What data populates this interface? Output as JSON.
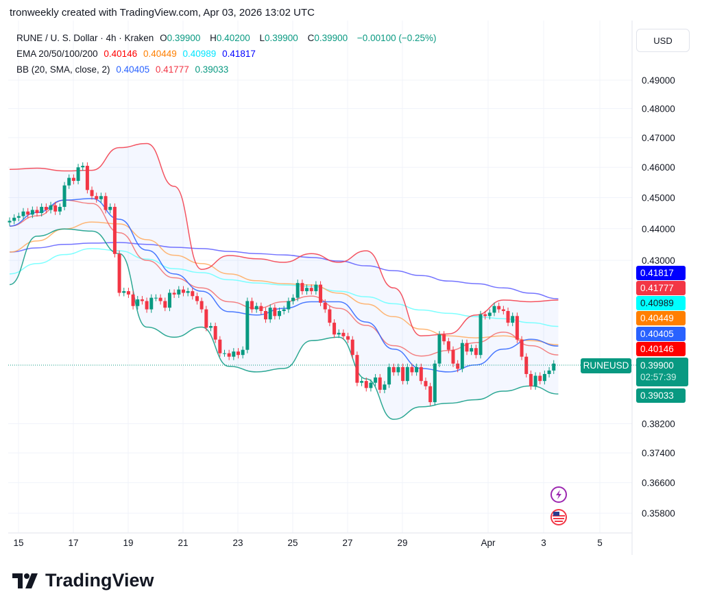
{
  "header": {
    "title": "tronweekly created with TradingView.com, Apr 03, 2026 13:02 UTC"
  },
  "legend": {
    "symbol": "RUNE / U. S. Dollar · 4h · Kraken",
    "o_label": "O",
    "o": "0.39900",
    "h_label": "H",
    "h": "0.40200",
    "l_label": "L",
    "l": "0.39900",
    "c_label": "C",
    "c": "0.39900",
    "change": "−0.00100 (−0.25%)",
    "ema_label": "EMA 20/50/100/200",
    "ema_values": [
      "0.40146",
      "0.40449",
      "0.40989",
      "0.41817"
    ],
    "bb_label": "BB (20, SMA, close, 2)",
    "bb_values": [
      "0.40405",
      "0.41777",
      "0.39033"
    ]
  },
  "currency_button": "USD",
  "badges": {
    "ema200": "0.41817",
    "bb_upper": "0.41777",
    "ema100": "0.40989",
    "ema50": "0.40449",
    "bb_basis": "0.40405",
    "ema20": "0.40146",
    "price": "0.39900",
    "countdown": "02:57:39",
    "bb_lower": "0.39033",
    "symbol": "RUNEUSD"
  },
  "colors": {
    "up": "#089981",
    "down": "#f23645",
    "ema20": "#ff0000",
    "ema50": "#ff7f00",
    "ema100": "#00ffff",
    "ema200": "#0000ff",
    "bb_basis": "#2962ff",
    "bb_upper": "#f23645",
    "bb_lower": "#089981"
  },
  "icons": [
    "lightning-icon",
    "us-flag-icon"
  ],
  "brand": "TradingView",
  "chart_data": {
    "type": "candlestick",
    "scale": "log",
    "grid": true,
    "interval": "4h",
    "first_candle": "Mar 14 16:00",
    "y_ticks": [
      "0.49000",
      "0.48000",
      "0.47000",
      "0.46000",
      "0.45000",
      "0.44000",
      "0.43000",
      "0.38200",
      "0.37400",
      "0.36600",
      "0.35800"
    ],
    "x_ticks": [
      "15",
      "17",
      "19",
      "21",
      "23",
      "25",
      "27",
      "29",
      "Apr",
      "3",
      "5"
    ],
    "close": [
      0.4425,
      0.4435,
      0.444,
      0.4455,
      0.4445,
      0.446,
      0.445,
      0.447,
      0.446,
      0.4475,
      0.4455,
      0.447,
      0.454,
      0.4565,
      0.4555,
      0.46,
      0.4605,
      0.4525,
      0.4505,
      0.4495,
      0.4505,
      0.446,
      0.447,
      0.432,
      0.42,
      0.4205,
      0.4195,
      0.416,
      0.418,
      0.4175,
      0.415,
      0.4185,
      0.4185,
      0.4175,
      0.4155,
      0.42,
      0.4195,
      0.421,
      0.42,
      0.4205,
      0.419,
      0.4175,
      0.415,
      0.4095,
      0.41,
      0.406,
      0.402,
      0.402,
      0.401,
      0.4025,
      0.4015,
      0.403,
      0.4175,
      0.415,
      0.416,
      0.4145,
      0.412,
      0.4155,
      0.413,
      0.4145,
      0.415,
      0.4175,
      0.4185,
      0.423,
      0.4205,
      0.4215,
      0.4205,
      0.4225,
      0.417,
      0.415,
      0.411,
      0.4075,
      0.408,
      0.407,
      0.406,
      0.4015,
      0.3935,
      0.394,
      0.392,
      0.3935,
      0.395,
      0.3915,
      0.393,
      0.398,
      0.3965,
      0.398,
      0.394,
      0.398,
      0.3965,
      0.398,
      0.394,
      0.3925,
      0.388,
      0.399,
      0.4075,
      0.4055,
      0.403,
      0.399,
      0.3975,
      0.405,
      0.4025,
      0.4035,
      0.4015,
      0.4135,
      0.413,
      0.414,
      0.416,
      0.415,
      0.4145,
      0.411,
      0.413,
      0.406,
      0.401,
      0.396,
      0.3925,
      0.3955,
      0.394,
      0.396,
      0.397,
      0.399
    ],
    "indicator_sample_every_candles": 6,
    "series": [
      {
        "name": "EMA 200",
        "key": "ema200",
        "values": [
          0.4326,
          0.4339,
          0.435,
          0.4354,
          0.4356,
          0.435,
          0.4341,
          0.4337,
          0.4328,
          0.4321,
          0.4317,
          0.4309,
          0.4298,
          0.4283,
          0.4268,
          0.4253,
          0.4236,
          0.4228,
          0.4215,
          0.4199,
          0.4182
        ]
      },
      {
        "name": "EMA 100",
        "key": "ema100",
        "values": [
          0.4258,
          0.429,
          0.4318,
          0.4337,
          0.433,
          0.4304,
          0.4274,
          0.4262,
          0.424,
          0.423,
          0.4224,
          0.4219,
          0.4205,
          0.4188,
          0.4167,
          0.4148,
          0.4138,
          0.4128,
          0.4122,
          0.411,
          0.4099
        ]
      },
      {
        "name": "EMA 50",
        "key": "ema50",
        "values": [
          0.4326,
          0.4361,
          0.4399,
          0.4421,
          0.4415,
          0.4365,
          0.4316,
          0.429,
          0.4258,
          0.4237,
          0.4228,
          0.4224,
          0.4199,
          0.4166,
          0.4128,
          0.4091,
          0.4071,
          0.4065,
          0.4071,
          0.4057,
          0.4045
        ]
      },
      {
        "name": "EMA 20",
        "key": "ema20",
        "values": [
          0.4408,
          0.4441,
          0.4492,
          0.4481,
          0.4387,
          0.43,
          0.4246,
          0.4215,
          0.4173,
          0.4153,
          0.4173,
          0.419,
          0.4153,
          0.4102,
          0.4042,
          0.4012,
          0.4028,
          0.4051,
          0.4082,
          0.4042,
          0.4015
        ]
      },
      {
        "name": "BB basis",
        "key": "bb_basis",
        "values": [
          0.4408,
          0.4452,
          0.4492,
          0.4497,
          0.443,
          0.4332,
          0.4258,
          0.4205,
          0.4143,
          0.4133,
          0.4153,
          0.4173,
          0.4173,
          0.4112,
          0.4032,
          0.3976,
          0.3966,
          0.3986,
          0.4032,
          0.4061,
          0.4041
        ]
      },
      {
        "name": "BB upper",
        "key": "bb_upper",
        "values": [
          0.4593,
          0.4597,
          0.4588,
          0.459,
          0.4666,
          0.468,
          0.4537,
          0.4272,
          0.4315,
          0.4305,
          0.4294,
          0.4321,
          0.4294,
          0.433,
          0.4215,
          0.4071,
          0.4077,
          0.4133,
          0.4178,
          0.4173,
          0.4178
        ]
      },
      {
        "name": "BB lower",
        "key": "bb_lower",
        "values": [
          0.4225,
          0.4376,
          0.4399,
          0.4392,
          0.4321,
          0.4097,
          0.4067,
          0.4097,
          0.3982,
          0.3966,
          0.3976,
          0.4057,
          0.4067,
          0.3946,
          0.3832,
          0.3867,
          0.3877,
          0.3887,
          0.3911,
          0.3926,
          0.3903
        ]
      }
    ]
  }
}
